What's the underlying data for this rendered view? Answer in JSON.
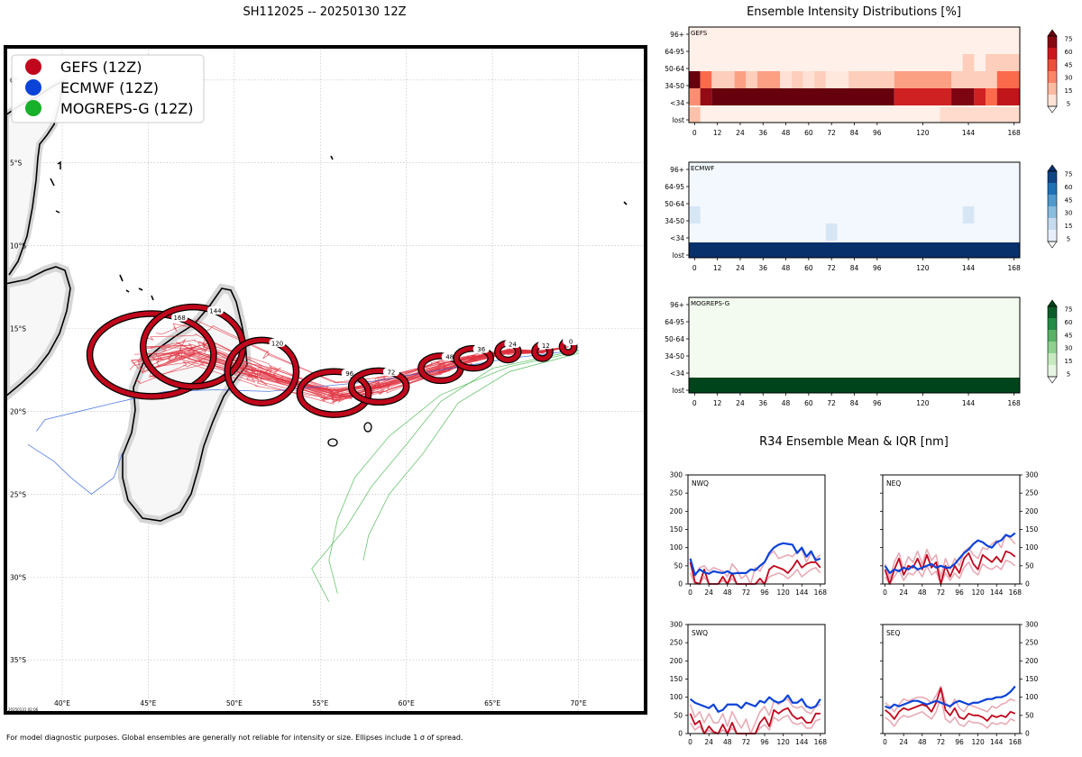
{
  "map": {
    "title": "SH112025 -- 20250130 12Z",
    "footnote": "For model diagnostic purposes. Global ensembles are generally not reliable for intensity or size. Ellipses include 1 σ of spread.",
    "stamp": "20250131 02:06",
    "legend": [
      {
        "label": "GEFS (12Z)",
        "color": "#c0071c"
      },
      {
        "label": "ECMWF (12Z)",
        "color": "#0b43d9"
      },
      {
        "label": "MOGREPS-G (12Z)",
        "color": "#17b02a"
      }
    ],
    "lat_ticks": [
      {
        "lat": 0,
        "label": "0°"
      },
      {
        "lat": -5,
        "label": "5°S"
      },
      {
        "lat": -10,
        "label": "10°S"
      },
      {
        "lat": -15,
        "label": "15°S"
      },
      {
        "lat": -20,
        "label": "20°S"
      },
      {
        "lat": -25,
        "label": "25°S"
      },
      {
        "lat": -30,
        "label": "30°S"
      },
      {
        "lat": -35,
        "label": "35°S"
      }
    ],
    "lon_ticks": [
      {
        "lon": 40,
        "label": "40°E"
      },
      {
        "lon": 45,
        "label": "45°E"
      },
      {
        "lon": 50,
        "label": "50°E"
      },
      {
        "lon": 55,
        "label": "55°E"
      },
      {
        "lon": 60,
        "label": "60°E"
      },
      {
        "lon": 65,
        "label": "65°E"
      },
      {
        "lon": 70,
        "label": "70°E"
      }
    ],
    "lon_range": [
      36.7,
      73.9
    ],
    "lat_range": [
      -38.2,
      2.0
    ],
    "mean_track": [
      {
        "hour": 0,
        "lon": 69.4,
        "lat": -16.1,
        "rx": 0.35,
        "ry": 0.35,
        "label": "0"
      },
      {
        "hour": 12,
        "lon": 67.9,
        "lat": -16.4,
        "rx": 0.45,
        "ry": 0.42,
        "label": "12"
      },
      {
        "hour": 24,
        "lon": 65.9,
        "lat": -16.4,
        "rx": 0.6,
        "ry": 0.5,
        "label": "24"
      },
      {
        "hour": 36,
        "lon": 63.9,
        "lat": -16.8,
        "rx": 1.0,
        "ry": 0.6,
        "label": "36"
      },
      {
        "hour": 48,
        "lon": 62.0,
        "lat": -17.4,
        "rx": 1.15,
        "ry": 0.75,
        "label": "48"
      },
      {
        "hour": 72,
        "lon": 58.4,
        "lat": -18.5,
        "rx": 1.6,
        "ry": 0.95,
        "label": "72"
      },
      {
        "hour": 96,
        "lon": 55.8,
        "lat": -18.9,
        "rx": 2.0,
        "ry": 1.3,
        "label": "96"
      },
      {
        "hour": 120,
        "lon": 51.6,
        "lat": -17.6,
        "rx": 2.0,
        "ry": 1.9,
        "label": "120"
      },
      {
        "hour": 144,
        "lon": 47.6,
        "lat": -16.1,
        "rx": 2.9,
        "ry": 2.4,
        "label": "144"
      },
      {
        "hour": 168,
        "lon": 45.2,
        "lat": -16.6,
        "rx": 3.6,
        "ry": 2.5,
        "label": "168"
      }
    ]
  },
  "chart_data": [
    {
      "type": "heatmap",
      "title": "Ensemble Intensity Distributions [%]",
      "panel": "GEFS",
      "x_ticks": [
        0,
        12,
        24,
        36,
        48,
        60,
        72,
        84,
        96,
        120,
        144,
        168
      ],
      "rows": [
        "96+",
        "64-95",
        "50-64",
        "34-50",
        "<34",
        "lost"
      ],
      "colorbar": [
        5,
        15,
        30,
        45,
        60,
        75
      ],
      "cmap": "Reds",
      "cells": [
        {
          "row": "lost",
          "h0": 0,
          "h1": 6,
          "v": 20
        },
        {
          "row": "lost",
          "h0": 132,
          "h1": 174,
          "v": 10
        },
        {
          "row": "<34",
          "h0": 0,
          "h1": 6,
          "v": 35
        },
        {
          "row": "<34",
          "h0": 6,
          "h1": 12,
          "v": 80
        },
        {
          "row": "<34",
          "h0": 12,
          "h1": 108,
          "v": 90
        },
        {
          "row": "<34",
          "h0": 108,
          "h1": 138,
          "v": 65
        },
        {
          "row": "<34",
          "h0": 138,
          "h1": 150,
          "v": 85
        },
        {
          "row": "<34",
          "h0": 150,
          "h1": 156,
          "v": 65
        },
        {
          "row": "<34",
          "h0": 156,
          "h1": 162,
          "v": 45
        },
        {
          "row": "<34",
          "h0": 162,
          "h1": 174,
          "v": 70
        },
        {
          "row": "34-50",
          "h0": 0,
          "h1": 6,
          "v": 90
        },
        {
          "row": "34-50",
          "h0": 6,
          "h1": 12,
          "v": 45
        },
        {
          "row": "34-50",
          "h0": 12,
          "h1": 24,
          "v": 15
        },
        {
          "row": "34-50",
          "h0": 24,
          "h1": 30,
          "v": 30
        },
        {
          "row": "34-50",
          "h0": 30,
          "h1": 36,
          "v": 15
        },
        {
          "row": "34-50",
          "h0": 36,
          "h1": 48,
          "v": 30
        },
        {
          "row": "34-50",
          "h0": 48,
          "h1": 54,
          "v": 8
        },
        {
          "row": "34-50",
          "h0": 54,
          "h1": 60,
          "v": 15
        },
        {
          "row": "34-50",
          "h0": 60,
          "h1": 66,
          "v": 8
        },
        {
          "row": "34-50",
          "h0": 66,
          "h1": 72,
          "v": 15
        },
        {
          "row": "34-50",
          "h0": 72,
          "h1": 84,
          "v": 5
        },
        {
          "row": "34-50",
          "h0": 84,
          "h1": 108,
          "v": 15
        },
        {
          "row": "34-50",
          "h0": 108,
          "h1": 138,
          "v": 30
        },
        {
          "row": "34-50",
          "h0": 138,
          "h1": 162,
          "v": 15
        },
        {
          "row": "34-50",
          "h0": 162,
          "h1": 174,
          "v": 45
        },
        {
          "row": "50-64",
          "h0": 144,
          "h1": 150,
          "v": 15
        },
        {
          "row": "50-64",
          "h0": 156,
          "h1": 174,
          "v": 15
        }
      ]
    },
    {
      "type": "heatmap",
      "panel": "ECMWF",
      "x_ticks": [
        0,
        12,
        24,
        36,
        48,
        60,
        72,
        84,
        96,
        120,
        144,
        168
      ],
      "rows": [
        "96+",
        "64-95",
        "50-64",
        "34-50",
        "<34",
        "lost"
      ],
      "colorbar": [
        5,
        15,
        30,
        45,
        60,
        75
      ],
      "cmap": "Blues",
      "cells": [
        {
          "row": "lost",
          "h0": 0,
          "h1": 174,
          "v": 95
        },
        {
          "row": "34-50",
          "h0": 0,
          "h1": 6,
          "v": 15
        },
        {
          "row": "34-50",
          "h0": 144,
          "h1": 150,
          "v": 15
        },
        {
          "row": "<34",
          "h0": 72,
          "h1": 78,
          "v": 15
        }
      ]
    },
    {
      "type": "heatmap",
      "panel": "MOGREPS-G",
      "x_ticks": [
        0,
        12,
        24,
        36,
        48,
        60,
        72,
        84,
        96,
        120,
        144,
        168
      ],
      "rows": [
        "96+",
        "64-95",
        "50-64",
        "34-50",
        "<34",
        "lost"
      ],
      "colorbar": [
        5,
        15,
        30,
        45,
        60,
        75
      ],
      "cmap": "Greens",
      "cells": [
        {
          "row": "lost",
          "h0": 0,
          "h1": 174,
          "v": 95
        }
      ]
    },
    {
      "type": "line",
      "title": "R34 Ensemble Mean & IQR [nm]",
      "panels": [
        {
          "name": "NWQ",
          "x": [
            0,
            6,
            12,
            18,
            24,
            30,
            36,
            42,
            48,
            54,
            60,
            66,
            72,
            78,
            84,
            90,
            96,
            102,
            108,
            114,
            120,
            126,
            132,
            138,
            144,
            150,
            156,
            162,
            168
          ],
          "ecmwf": [
            70,
            25,
            40,
            32,
            28,
            35,
            32,
            30,
            35,
            28,
            30,
            30,
            30,
            40,
            38,
            50,
            60,
            85,
            100,
            108,
            112,
            110,
            108,
            85,
            100,
            75,
            90,
            65,
            70
          ],
          "gefs": [
            60,
            5,
            0,
            40,
            0,
            0,
            0,
            20,
            0,
            30,
            0,
            0,
            0,
            0,
            0,
            15,
            0,
            40,
            50,
            45,
            40,
            30,
            45,
            65,
            45,
            55,
            60,
            60,
            45
          ],
          "gefs_q1": [
            30,
            0,
            0,
            20,
            0,
            0,
            0,
            10,
            0,
            15,
            0,
            0,
            0,
            0,
            0,
            5,
            0,
            20,
            25,
            30,
            25,
            15,
            25,
            40,
            20,
            30,
            40,
            45,
            30
          ],
          "gefs_q3": [
            70,
            20,
            45,
            50,
            35,
            45,
            40,
            35,
            20,
            55,
            40,
            15,
            25,
            0,
            45,
            35,
            60,
            80,
            90,
            70,
            75,
            80,
            75,
            90,
            95,
            60,
            85,
            70,
            80
          ]
        },
        {
          "name": "NEQ",
          "x": [
            0,
            6,
            12,
            18,
            24,
            30,
            36,
            42,
            48,
            54,
            60,
            66,
            72,
            78,
            84,
            90,
            96,
            102,
            108,
            114,
            120,
            126,
            132,
            138,
            144,
            150,
            156,
            162,
            168
          ],
          "ecmwf": [
            50,
            30,
            40,
            35,
            45,
            40,
            50,
            40,
            45,
            50,
            55,
            45,
            50,
            45,
            45,
            55,
            70,
            85,
            95,
            110,
            120,
            115,
            105,
            100,
            115,
            120,
            135,
            130,
            140
          ],
          "gefs": [
            40,
            0,
            40,
            70,
            25,
            50,
            45,
            70,
            40,
            80,
            45,
            60,
            0,
            50,
            20,
            50,
            30,
            70,
            85,
            55,
            40,
            80,
            70,
            60,
            75,
            60,
            90,
            85,
            75
          ],
          "gefs_q1": [
            20,
            0,
            20,
            40,
            10,
            30,
            25,
            40,
            20,
            50,
            25,
            35,
            0,
            30,
            10,
            30,
            15,
            45,
            60,
            35,
            25,
            55,
            45,
            40,
            50,
            40,
            65,
            60,
            50
          ],
          "gefs_q3": [
            55,
            15,
            60,
            85,
            40,
            75,
            60,
            90,
            55,
            95,
            65,
            80,
            20,
            70,
            40,
            70,
            50,
            90,
            100,
            80,
            70,
            100,
            95,
            110,
            120,
            100,
            135,
            125,
            110
          ]
        },
        {
          "name": "SWQ",
          "x": [
            0,
            6,
            12,
            18,
            24,
            30,
            36,
            42,
            48,
            54,
            60,
            66,
            72,
            78,
            84,
            90,
            96,
            102,
            108,
            114,
            120,
            126,
            132,
            138,
            144,
            150,
            156,
            162,
            168
          ],
          "ecmwf": [
            95,
            85,
            80,
            75,
            70,
            80,
            60,
            65,
            80,
            80,
            80,
            70,
            85,
            80,
            75,
            90,
            85,
            100,
            90,
            85,
            90,
            105,
            85,
            85,
            95,
            75,
            70,
            75,
            95
          ],
          "gefs": [
            55,
            25,
            35,
            0,
            20,
            5,
            0,
            25,
            0,
            30,
            0,
            0,
            0,
            0,
            0,
            30,
            45,
            20,
            65,
            55,
            65,
            70,
            50,
            40,
            45,
            30,
            30,
            55,
            55
          ],
          "gefs_q1": [
            30,
            10,
            20,
            0,
            10,
            0,
            0,
            10,
            0,
            15,
            0,
            0,
            0,
            0,
            0,
            15,
            25,
            10,
            45,
            35,
            45,
            50,
            30,
            25,
            30,
            15,
            15,
            35,
            40
          ],
          "gefs_q3": [
            80,
            45,
            60,
            30,
            55,
            30,
            30,
            55,
            20,
            60,
            35,
            15,
            40,
            0,
            30,
            60,
            75,
            50,
            90,
            80,
            90,
            95,
            75,
            70,
            75,
            60,
            55,
            75,
            80
          ]
        },
        {
          "name": "SEQ",
          "x": [
            0,
            6,
            12,
            18,
            24,
            30,
            36,
            42,
            48,
            54,
            60,
            66,
            72,
            78,
            84,
            90,
            96,
            102,
            108,
            114,
            120,
            126,
            132,
            138,
            144,
            150,
            156,
            162,
            168
          ],
          "ecmwf": [
            75,
            70,
            80,
            75,
            80,
            85,
            90,
            90,
            85,
            80,
            85,
            90,
            85,
            80,
            75,
            85,
            90,
            85,
            80,
            85,
            85,
            90,
            95,
            95,
            100,
            100,
            105,
            115,
            130
          ],
          "gefs": [
            65,
            55,
            40,
            60,
            70,
            65,
            70,
            75,
            80,
            75,
            60,
            85,
            125,
            65,
            50,
            70,
            45,
            40,
            55,
            50,
            50,
            45,
            35,
            50,
            45,
            50,
            45,
            60,
            55
          ],
          "gefs_q1": [
            45,
            35,
            20,
            40,
            50,
            45,
            50,
            55,
            60,
            50,
            40,
            60,
            100,
            40,
            30,
            45,
            25,
            20,
            35,
            30,
            30,
            25,
            15,
            30,
            25,
            30,
            25,
            40,
            35
          ],
          "gefs_q3": [
            85,
            75,
            60,
            80,
            95,
            90,
            95,
            100,
            100,
            95,
            85,
            105,
            130,
            85,
            70,
            95,
            70,
            60,
            80,
            75,
            70,
            65,
            60,
            75,
            70,
            80,
            85,
            95,
            90
          ]
        }
      ],
      "x_ticks": [
        0,
        24,
        48,
        72,
        96,
        120,
        144,
        168
      ],
      "y_ticks": [
        0,
        50,
        100,
        150,
        200,
        250,
        300
      ],
      "ylim": [
        0,
        300
      ],
      "colors": {
        "ecmwf": "#0b43d9",
        "gefs": "#c0071c",
        "iqr": "#e8aab5"
      }
    }
  ]
}
